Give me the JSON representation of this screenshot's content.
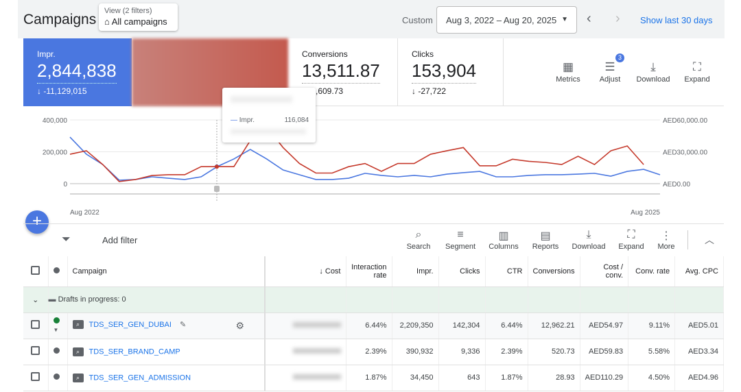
{
  "header": {
    "title": "Campaigns",
    "view_filters": "View (2 filters)",
    "view_name": "All campaigns",
    "custom": "Custom",
    "date_range": "Aug 3, 2022 – Aug 20, 2025",
    "show_last": "Show last 30 days"
  },
  "scorecards": [
    {
      "label": "Impr.",
      "value": "2,844,838",
      "change": "↓ -11,129,015"
    },
    {
      "label": "Conversions",
      "value": "13,511.87",
      "change": "↓ -1,609.73"
    },
    {
      "label": "Clicks",
      "value": "153,904",
      "change": "↓ -27,722"
    }
  ],
  "card_tools": [
    {
      "label": "Metrics"
    },
    {
      "label": "Adjust",
      "badge": "3"
    },
    {
      "label": "Download"
    },
    {
      "label": "Expand"
    }
  ],
  "tooltip": {
    "label": "Impr.",
    "value": "116,084"
  },
  "chart_data": {
    "type": "line",
    "left_ticks": [
      "400,000",
      "200,000",
      "0"
    ],
    "right_ticks": [
      "AED60,000.00",
      "AED30,000.00",
      "AED0.00"
    ],
    "x_labels": [
      "Aug 2022",
      "Aug 2025"
    ],
    "ylim_left": [
      0,
      400000
    ],
    "ylim_right": [
      0,
      60000
    ],
    "series": [
      {
        "name": "Impr.",
        "color": "#4a77e0",
        "axis": "left",
        "values": [
          292000,
          185000,
          120000,
          22000,
          26000,
          43000,
          34000,
          26000,
          43000,
          108000,
          155000,
          215000,
          155000,
          86000,
          56000,
          26000,
          26000,
          34000,
          65000,
          52000,
          43000,
          52000,
          43000,
          60000,
          69000,
          77000,
          43000,
          43000,
          52000,
          56000,
          56000,
          60000,
          65000,
          47000,
          77000,
          90000,
          56000
        ]
      },
      {
        "name": "Cost",
        "color": "#c5392b",
        "axis": "right",
        "values": [
          27700,
          31000,
          18000,
          2000,
          3900,
          7700,
          8400,
          8400,
          16000,
          16000,
          16000,
          40600,
          53500,
          34000,
          19000,
          10000,
          10000,
          16000,
          19000,
          11600,
          19000,
          19000,
          27700,
          31000,
          34000,
          16800,
          16800,
          23000,
          21000,
          20000,
          18000,
          25800,
          18000,
          31000,
          35500,
          18000
        ]
      }
    ]
  },
  "filter": {
    "add_filter": "Add filter"
  },
  "table_tools": [
    {
      "label": "Search",
      "icon": "search-icon"
    },
    {
      "label": "Segment",
      "icon": "segment-icon"
    },
    {
      "label": "Columns",
      "icon": "columns-icon"
    },
    {
      "label": "Reports",
      "icon": "reports-icon"
    },
    {
      "label": "Download",
      "icon": "download-icon"
    },
    {
      "label": "Expand",
      "icon": "expand-icon"
    },
    {
      "label": "More",
      "icon": "more-icon"
    }
  ],
  "table": {
    "headers": [
      "Campaign",
      "↓ Cost",
      "Interaction rate",
      "Impr.",
      "Clicks",
      "CTR",
      "Conversions",
      "Cost / conv.",
      "Conv. rate",
      "Avg. CPC"
    ],
    "drafts": "Drafts in progress: 0",
    "rows": [
      {
        "name": "TDS_SER_GEN_DUBAI",
        "status_color": "#188038",
        "cells": [
          "6.44%",
          "2,209,350",
          "142,304",
          "6.44%",
          "12,962.21",
          "AED54.97",
          "9.11%",
          "AED5.01"
        ]
      },
      {
        "name": "TDS_SER_BRAND_CAMP",
        "status_color": "#5f6368",
        "cells": [
          "2.39%",
          "390,932",
          "9,336",
          "2.39%",
          "520.73",
          "AED59.83",
          "5.58%",
          "AED3.34"
        ]
      },
      {
        "name": "TDS_SER_GEN_ADMISSION",
        "status_color": "#5f6368",
        "cells": [
          "1.87%",
          "34,450",
          "643",
          "1.87%",
          "28.93",
          "AED110.29",
          "4.50%",
          "AED4.96"
        ]
      }
    ]
  }
}
